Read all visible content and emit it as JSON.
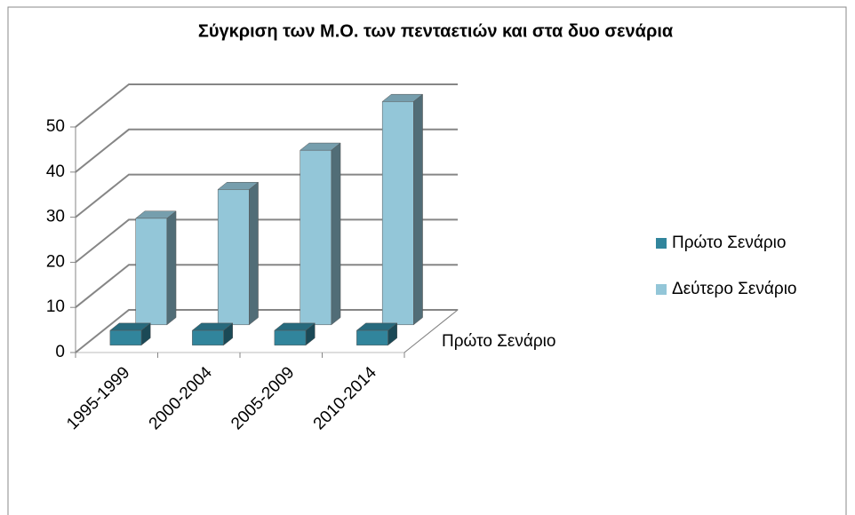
{
  "chart_data": {
    "type": "bar3d",
    "title": "Σύγκριση των Μ.Ο. των πενταετιών και στα δυο σενάρια",
    "categories": [
      "1995-1999",
      "2000-2004",
      "2005-2009",
      "2010-2014"
    ],
    "series": [
      {
        "name": "Πρώτο Σενάριο",
        "color": "#31859c",
        "values": [
          3.3,
          3.3,
          3.3,
          3.3
        ]
      },
      {
        "name": "Δεύτερο Σενάριο",
        "color": "#93c6d8",
        "values": [
          23.6,
          30,
          38.7,
          49.5
        ]
      }
    ],
    "series_axis_labels": [
      "Πρώτο Σενάριο"
    ],
    "ylim": [
      0,
      50
    ],
    "yticks": [
      0,
      10,
      20,
      30,
      40,
      50
    ],
    "grid": true,
    "legend": "right"
  }
}
